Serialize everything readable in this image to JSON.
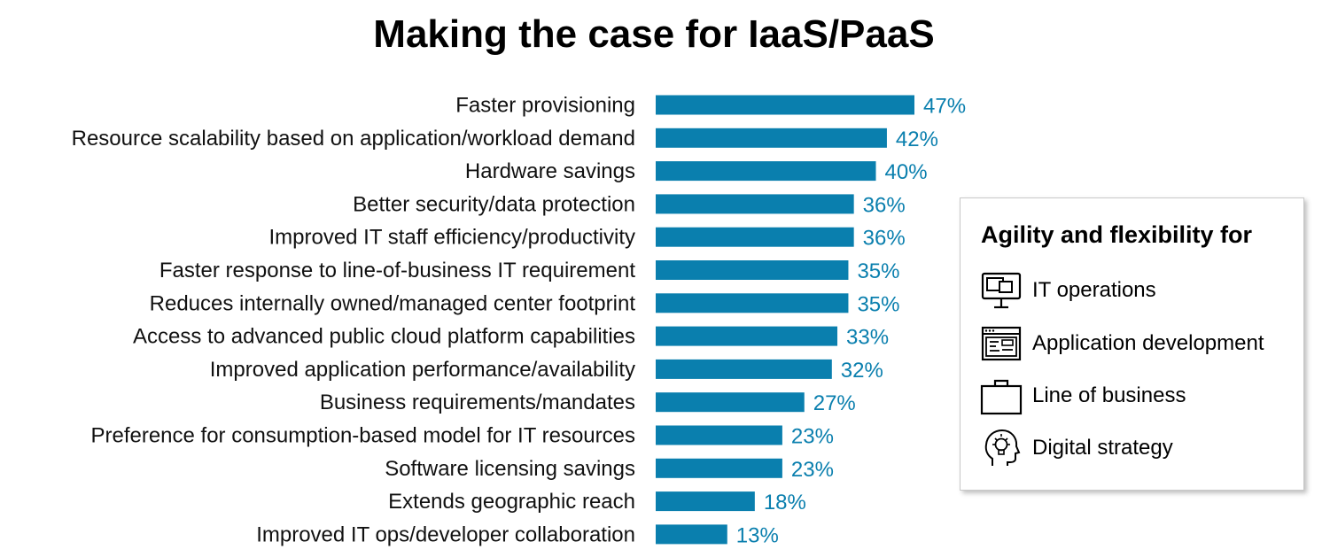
{
  "colors": {
    "bar": "#0a7fae",
    "value_text": "#0a7fae"
  },
  "chart_data": {
    "type": "bar",
    "orientation": "horizontal",
    "title": "Making the case for IaaS/PaaS",
    "categories": [
      "Faster provisioning",
      "Resource scalability based on application/workload demand",
      "Hardware savings",
      "Better security/data protection",
      "Improved IT staff efficiency/productivity",
      "Faster response to line-of-business IT requirement",
      "Reduces internally owned/managed center footprint",
      "Access to advanced public cloud platform capabilities",
      "Improved application performance/availability",
      "Business requirements/mandates",
      "Preference for consumption-based model for IT resources",
      "Software licensing savings",
      "Extends geographic reach",
      "Improved IT ops/developer collaboration"
    ],
    "values": [
      47,
      42,
      40,
      36,
      36,
      35,
      35,
      33,
      32,
      27,
      23,
      23,
      18,
      13
    ],
    "value_labels": [
      "47%",
      "42%",
      "40%",
      "36%",
      "36%",
      "35%",
      "35%",
      "33%",
      "32%",
      "27%",
      "23%",
      "23%",
      "18%",
      "13%"
    ],
    "unit": "%",
    "xlim": [
      0,
      47
    ],
    "grid": false
  },
  "legend": {
    "heading": "Agility and flexibility for",
    "items": [
      {
        "label": "IT operations",
        "icon": "desktop-computer-icon"
      },
      {
        "label": "Application development",
        "icon": "code-window-icon"
      },
      {
        "label": "Line of business",
        "icon": "briefcase-icon"
      },
      {
        "label": "Digital strategy",
        "icon": "head-lightbulb-icon"
      }
    ]
  }
}
